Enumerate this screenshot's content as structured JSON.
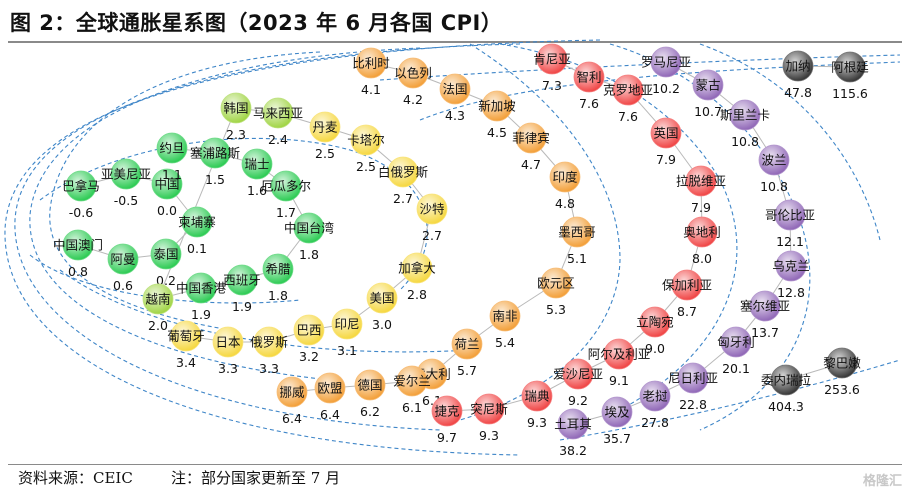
{
  "title": "图 2：全球通胀星系图（2023 年 6 月各国 CPI）",
  "footer": {
    "source": "资料来源：CEIC",
    "note": "注：部分国家更新至 7 月"
  },
  "watermark": "格隆汇",
  "chart_data": {
    "type": "scatter",
    "title": "图 2：全球通胀星系图（2023 年 6 月各国 CPI）",
    "xlabel": "",
    "ylabel": "",
    "unit": "%",
    "grid": false,
    "legend": "none",
    "color_scale": {
      "low": "#21c84a",
      "low_mid": "#9bd23a",
      "mid": "#f5d535",
      "mid_high": "#f29a2e",
      "high": "#ef3b3b",
      "very_high": "#8a5fb3",
      "extreme": "#2b2b2b"
    },
    "points": [
      {
        "name": "巴拿马",
        "value": -0.6
      },
      {
        "name": "亚美尼亚",
        "value": -0.5
      },
      {
        "name": "中国",
        "value": 0.0
      },
      {
        "name": "柬埔寨",
        "value": 0.1
      },
      {
        "name": "泰国",
        "value": 0.2
      },
      {
        "name": "阿曼",
        "value": 0.6
      },
      {
        "name": "中国澳门",
        "value": 0.8
      },
      {
        "name": "约旦",
        "value": 1.1
      },
      {
        "name": "塞浦路斯",
        "value": 1.5
      },
      {
        "name": "瑞士",
        "value": 1.6
      },
      {
        "name": "厄瓜多尔",
        "value": 1.7
      },
      {
        "name": "中国台湾",
        "value": 1.8
      },
      {
        "name": "希腊",
        "value": 1.8
      },
      {
        "name": "西班牙",
        "value": 1.9
      },
      {
        "name": "中国香港",
        "value": 1.9
      },
      {
        "name": "越南",
        "value": 2.0
      },
      {
        "name": "韩国",
        "value": 2.3
      },
      {
        "name": "马来西亚",
        "value": 2.4
      },
      {
        "name": "丹麦",
        "value": 2.5
      },
      {
        "name": "卡塔尔",
        "value": 2.5
      },
      {
        "name": "白俄罗斯",
        "value": 2.7
      },
      {
        "name": "沙特",
        "value": 2.7
      },
      {
        "name": "加拿大",
        "value": 2.8
      },
      {
        "name": "美国",
        "value": 3.0
      },
      {
        "name": "印尼",
        "value": 3.1
      },
      {
        "name": "巴西",
        "value": 3.2
      },
      {
        "name": "俄罗斯",
        "value": 3.3
      },
      {
        "name": "日本",
        "value": 3.3
      },
      {
        "name": "葡萄牙",
        "value": 3.4
      },
      {
        "name": "比利时",
        "value": 4.1
      },
      {
        "name": "以色列",
        "value": 4.2
      },
      {
        "name": "法国",
        "value": 4.3
      },
      {
        "name": "新加坡",
        "value": 4.5
      },
      {
        "name": "菲律宾",
        "value": 4.7
      },
      {
        "name": "印度",
        "value": 4.8
      },
      {
        "name": "墨西哥",
        "value": 5.1
      },
      {
        "name": "欧元区",
        "value": 5.3
      },
      {
        "name": "南非",
        "value": 5.4
      },
      {
        "name": "荷兰",
        "value": 5.7
      },
      {
        "name": "意大利",
        "value": 6.1
      },
      {
        "name": "爱尔兰",
        "value": 6.1
      },
      {
        "name": "德国",
        "value": 6.2
      },
      {
        "name": "欧盟",
        "value": 6.4
      },
      {
        "name": "挪威",
        "value": 6.4
      },
      {
        "name": "肯尼亚",
        "value": 7.3
      },
      {
        "name": "智利",
        "value": 7.6
      },
      {
        "name": "克罗地亚",
        "value": 7.6
      },
      {
        "name": "英国",
        "value": 7.9
      },
      {
        "name": "拉脱维亚",
        "value": 7.9
      },
      {
        "name": "奥地利",
        "value": 8.0
      },
      {
        "name": "保加利亚",
        "value": 8.7
      },
      {
        "name": "立陶宛",
        "value": 9.0
      },
      {
        "name": "阿尔及利亚",
        "value": 9.1
      },
      {
        "name": "爱沙尼亚",
        "value": 9.2
      },
      {
        "name": "瑞典",
        "value": 9.3
      },
      {
        "name": "突尼斯",
        "value": 9.3
      },
      {
        "name": "捷克",
        "value": 9.7
      },
      {
        "name": "罗马尼亚",
        "value": 10.2
      },
      {
        "name": "蒙古",
        "value": 10.7
      },
      {
        "name": "斯里兰卡",
        "value": 10.8
      },
      {
        "name": "波兰",
        "value": 10.8
      },
      {
        "name": "哥伦比亚",
        "value": 12.1
      },
      {
        "name": "乌克兰",
        "value": 12.8
      },
      {
        "name": "塞尔维亚",
        "value": 13.7
      },
      {
        "name": "匈牙利",
        "value": 20.1
      },
      {
        "name": "尼日利亚",
        "value": 22.8
      },
      {
        "name": "老挝",
        "value": 27.8
      },
      {
        "name": "埃及",
        "value": 35.7
      },
      {
        "name": "土耳其",
        "value": 38.2
      },
      {
        "name": "委内瑞拉",
        "value": 404.3
      },
      {
        "name": "黎巴嫩",
        "value": 253.6
      },
      {
        "name": "加纳",
        "value": 47.8
      },
      {
        "name": "阿根廷",
        "value": 115.6
      }
    ]
  }
}
